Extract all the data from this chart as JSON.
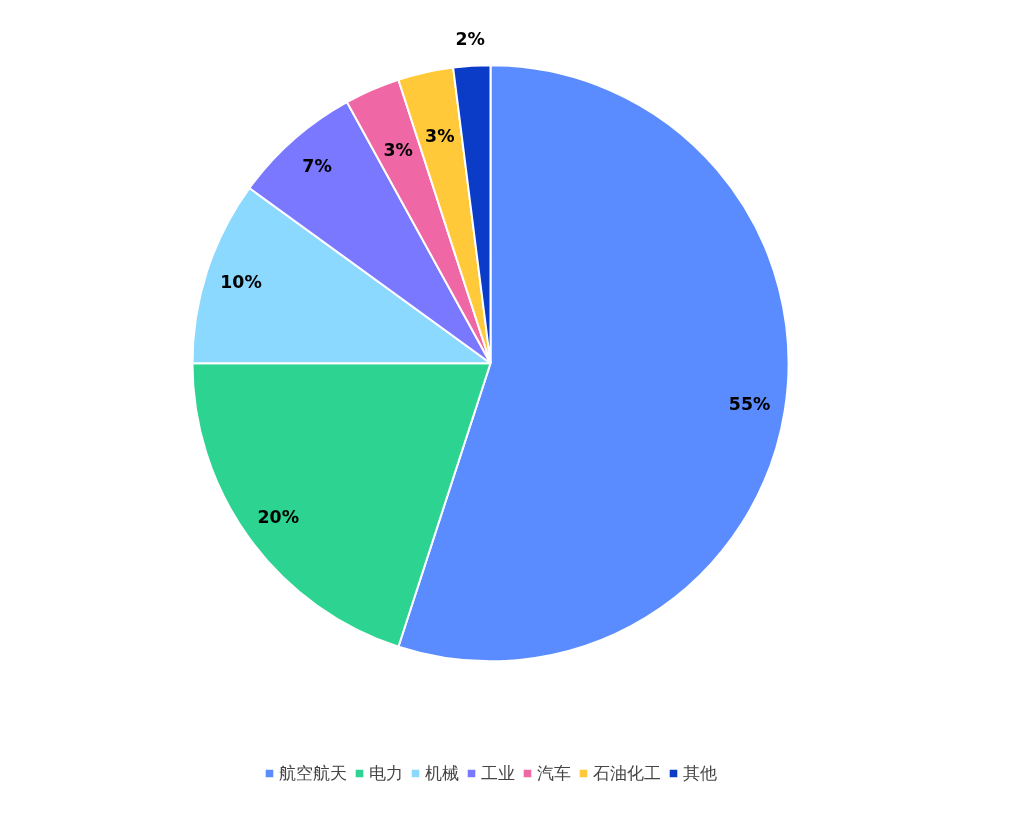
{
  "chart_data": {
    "type": "pie",
    "categories": [
      "航空航天",
      "电力",
      "机械",
      "工业",
      "汽车",
      "石油化工",
      "其他"
    ],
    "values": [
      55,
      20,
      10,
      7,
      3,
      3,
      2
    ],
    "value_labels": [
      "55%",
      "20%",
      "10%",
      "7%",
      "3%",
      "3%",
      "2%"
    ],
    "colors": [
      "#5b8cff",
      "#2dd391",
      "#8cd9ff",
      "#7a78ff",
      "#f067a6",
      "#ffc93a",
      "#0a3cc8"
    ],
    "legend": "bottom"
  }
}
